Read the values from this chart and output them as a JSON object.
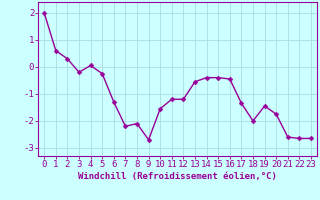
{
  "x": [
    0,
    1,
    2,
    3,
    4,
    5,
    6,
    7,
    8,
    9,
    10,
    11,
    12,
    13,
    14,
    15,
    16,
    17,
    18,
    19,
    20,
    21,
    22,
    23
  ],
  "y": [
    2.0,
    0.6,
    0.3,
    -0.2,
    0.05,
    -0.25,
    -1.3,
    -2.2,
    -2.1,
    -2.7,
    -1.55,
    -1.2,
    -1.2,
    -0.55,
    -0.4,
    -0.4,
    -0.45,
    -1.35,
    -2.0,
    -1.45,
    -1.75,
    -2.6,
    -2.65,
    -2.65
  ],
  "line_color": "#990099",
  "marker_color": "#990099",
  "bg_color": "#ccffff",
  "grid_color": "#aadddd",
  "xlabel": "Windchill (Refroidissement éolien,°C)",
  "ylabel": "",
  "xlim": [
    -0.5,
    23.5
  ],
  "ylim": [
    -3.3,
    2.4
  ],
  "yticks": [
    -3,
    -2,
    -1,
    0,
    1,
    2
  ],
  "xticks": [
    0,
    1,
    2,
    3,
    4,
    5,
    6,
    7,
    8,
    9,
    10,
    11,
    12,
    13,
    14,
    15,
    16,
    17,
    18,
    19,
    20,
    21,
    22,
    23
  ],
  "xlabel_fontsize": 6.5,
  "tick_fontsize": 6.5,
  "line_width": 1.0,
  "marker_size": 2.5
}
